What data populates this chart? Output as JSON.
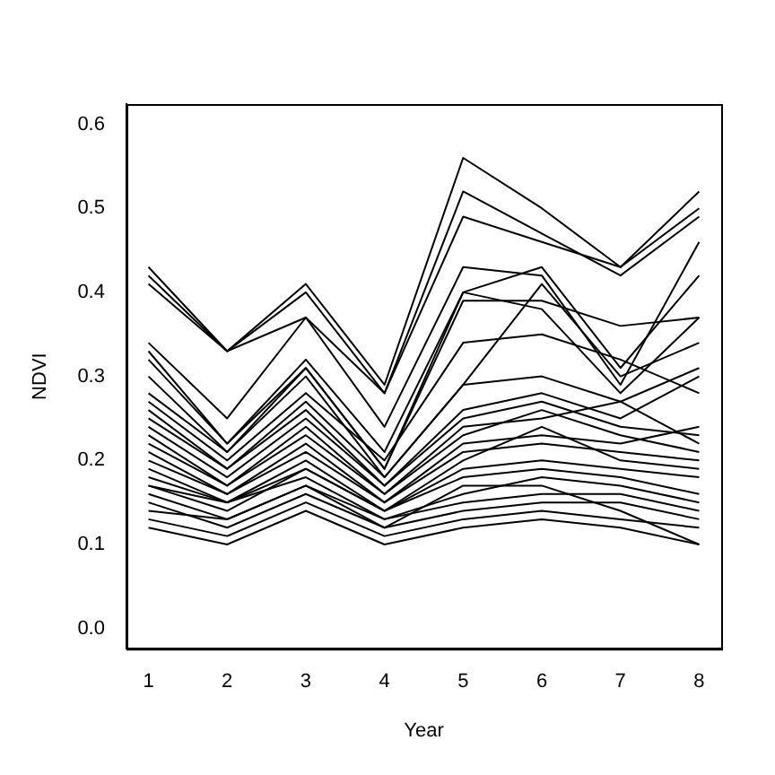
{
  "chart_data": {
    "type": "line",
    "xlabel": "Year",
    "ylabel": "NDVI",
    "x": [
      1,
      2,
      3,
      4,
      5,
      6,
      7,
      8
    ],
    "xlim": [
      0.72,
      8.28
    ],
    "ylim": [
      -0.024,
      0.624
    ],
    "xticks": [
      1,
      2,
      3,
      4,
      5,
      6,
      7,
      8
    ],
    "yticks": [
      {
        "value": 0,
        "label": "0.0"
      },
      {
        "value": 0.1,
        "label": "0.1"
      },
      {
        "value": 0.2,
        "label": "0.2"
      },
      {
        "value": 0.3,
        "label": "0.3"
      },
      {
        "value": 0.4,
        "label": "0.4"
      },
      {
        "value": 0.5,
        "label": "0.5"
      },
      {
        "value": 0.6,
        "label": "0.6"
      }
    ],
    "grid": false,
    "legend": false,
    "marker": "none",
    "line_style": "solid",
    "series": [
      {
        "color": "#000000",
        "values": [
          0.43,
          0.33,
          0.41,
          0.29,
          0.56,
          0.5,
          0.43,
          0.52
        ]
      },
      {
        "color": "#000000",
        "values": [
          0.41,
          0.33,
          0.37,
          0.28,
          0.49,
          0.46,
          0.43,
          0.5
        ]
      },
      {
        "color": "#000000",
        "values": [
          0.42,
          0.33,
          0.4,
          0.28,
          0.52,
          0.47,
          0.42,
          0.49
        ]
      },
      {
        "color": "#000000",
        "values": [
          0.34,
          0.25,
          0.37,
          0.24,
          0.43,
          0.42,
          0.29,
          0.46
        ]
      },
      {
        "color": "#000000",
        "values": [
          0.33,
          0.22,
          0.32,
          0.21,
          0.4,
          0.43,
          0.31,
          0.42
        ]
      },
      {
        "color": "#000000",
        "values": [
          0.32,
          0.22,
          0.31,
          0.19,
          0.39,
          0.39,
          0.36,
          0.37
        ]
      },
      {
        "color": "#000000",
        "values": [
          0.3,
          0.21,
          0.31,
          0.19,
          0.4,
          0.38,
          0.28,
          0.37
        ]
      },
      {
        "color": "#000000",
        "values": [
          0.28,
          0.21,
          0.3,
          0.18,
          0.29,
          0.41,
          0.3,
          0.34
        ]
      },
      {
        "color": "#000000",
        "values": [
          0.27,
          0.2,
          0.28,
          0.2,
          0.34,
          0.35,
          0.32,
          0.28
        ]
      },
      {
        "color": "#000000",
        "values": [
          0.26,
          0.19,
          0.27,
          0.18,
          0.29,
          0.3,
          0.27,
          0.31
        ]
      },
      {
        "color": "#000000",
        "values": [
          0.25,
          0.19,
          0.26,
          0.17,
          0.26,
          0.28,
          0.25,
          0.3
        ]
      },
      {
        "color": "#000000",
        "values": [
          0.24,
          0.18,
          0.25,
          0.17,
          0.25,
          0.27,
          0.24,
          0.23
        ]
      },
      {
        "color": "#000000",
        "values": [
          0.23,
          0.17,
          0.24,
          0.16,
          0.24,
          0.25,
          0.27,
          0.22
        ]
      },
      {
        "color": "#000000",
        "values": [
          0.22,
          0.17,
          0.23,
          0.16,
          0.23,
          0.26,
          0.23,
          0.21
        ]
      },
      {
        "color": "#000000",
        "values": [
          0.21,
          0.16,
          0.22,
          0.15,
          0.22,
          0.23,
          0.22,
          0.24
        ]
      },
      {
        "color": "#000000",
        "values": [
          0.2,
          0.16,
          0.21,
          0.15,
          0.21,
          0.22,
          0.21,
          0.2
        ]
      },
      {
        "color": "#000000",
        "values": [
          0.19,
          0.15,
          0.2,
          0.14,
          0.2,
          0.24,
          0.2,
          0.19
        ]
      },
      {
        "color": "#000000",
        "values": [
          0.18,
          0.15,
          0.19,
          0.14,
          0.19,
          0.2,
          0.19,
          0.18
        ]
      },
      {
        "color": "#000000",
        "values": [
          0.17,
          0.14,
          0.19,
          0.14,
          0.18,
          0.19,
          0.18,
          0.16
        ]
      },
      {
        "color": "#000000",
        "values": [
          0.17,
          0.15,
          0.18,
          0.13,
          0.16,
          0.18,
          0.17,
          0.15
        ]
      },
      {
        "color": "#000000",
        "values": [
          0.16,
          0.13,
          0.17,
          0.13,
          0.15,
          0.16,
          0.16,
          0.14
        ]
      },
      {
        "color": "#000000",
        "values": [
          0.15,
          0.12,
          0.16,
          0.12,
          0.14,
          0.15,
          0.15,
          0.13
        ]
      },
      {
        "color": "#000000",
        "values": [
          0.13,
          0.11,
          0.15,
          0.11,
          0.13,
          0.14,
          0.13,
          0.12
        ]
      },
      {
        "color": "#000000",
        "values": [
          0.12,
          0.1,
          0.14,
          0.1,
          0.12,
          0.13,
          0.12,
          0.1
        ]
      },
      {
        "color": "#000000",
        "values": [
          0.14,
          0.13,
          0.17,
          0.12,
          0.17,
          0.17,
          0.14,
          0.1
        ]
      }
    ]
  }
}
